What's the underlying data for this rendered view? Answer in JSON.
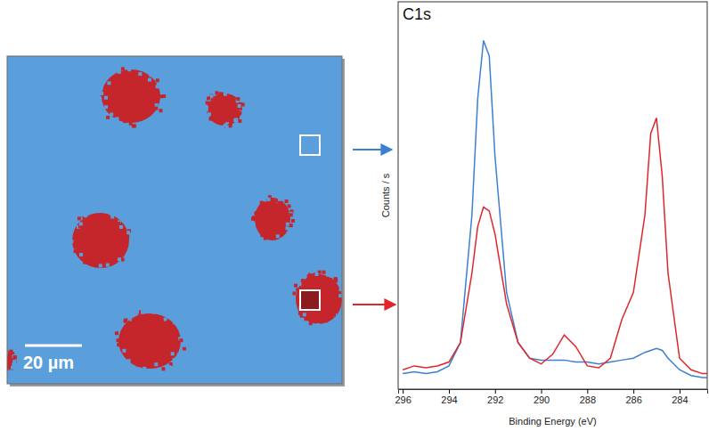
{
  "chart_data": {
    "type": "line",
    "title": "C1s",
    "x_label": "Binding Energy (eV)",
    "y_label": "Counts / s",
    "x": [
      296,
      295.5,
      295,
      294.5,
      294,
      293.5,
      293,
      292.75,
      292.5,
      292.25,
      292,
      291.5,
      291,
      290.5,
      290,
      289.5,
      289,
      288.5,
      288,
      287.5,
      287,
      286.5,
      286,
      285.5,
      285.25,
      285,
      284.75,
      284.5,
      284,
      283.5,
      283,
      282.8
    ],
    "series": [
      {
        "color": "#3d7fd0",
        "values": [
          4,
          4.5,
          4,
          4.5,
          6,
          12,
          45,
          75,
          90,
          86,
          60,
          25,
          12,
          8,
          7.5,
          7.5,
          7.5,
          7,
          7,
          6.5,
          7,
          7.5,
          8,
          9.5,
          10,
          10.5,
          10,
          8,
          5,
          3.5,
          3,
          3
        ]
      },
      {
        "color": "#e0262b",
        "values": [
          5,
          6,
          5.5,
          6,
          7,
          12,
          30,
          42,
          47,
          46,
          40,
          22,
          12,
          8,
          6.5,
          9,
          14,
          11,
          6,
          5.5,
          8,
          18,
          25,
          45,
          66,
          70,
          55,
          30,
          8,
          5,
          4,
          4
        ]
      }
    ],
    "xlim": [
      296.2,
      282.8
    ],
    "ylim": [
      0,
      100
    ],
    "xticks": [
      296,
      294,
      292,
      290,
      288,
      286,
      284
    ],
    "tick_labels": "x",
    "grid": false
  },
  "image": {
    "scale_bar": "20 µm"
  }
}
